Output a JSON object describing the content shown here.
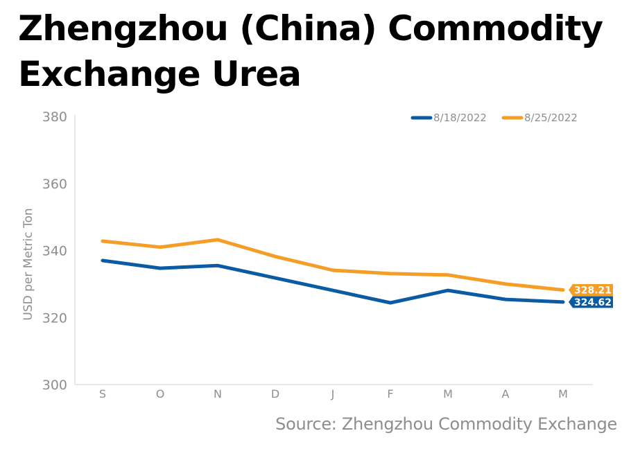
{
  "title_lines": [
    "Zhengzhou (China) Commodity",
    "Exchange Urea"
  ],
  "source": "Source: Zhengzhou Commodity Exchange",
  "chart_data": {
    "type": "line",
    "title": "Zhengzhou (China) Commodity Exchange Urea",
    "xlabel": "",
    "ylabel": "USD per Metric Ton",
    "categories": [
      "S",
      "O",
      "N",
      "D",
      "J",
      "F",
      "M",
      "A",
      "M"
    ],
    "ylim": [
      300,
      380
    ],
    "yticks": [
      300,
      320,
      340,
      360,
      380
    ],
    "ytick_labels": [
      "300",
      "320",
      "340",
      "360",
      "380"
    ],
    "grid": false,
    "legend_position": "top-right",
    "series": [
      {
        "name": "8/18/2022",
        "color": "#0a5ba4",
        "values": [
          337.0,
          334.7,
          335.5,
          331.8,
          328.1,
          324.4,
          328.1,
          325.4,
          324.62
        ],
        "end_label": "324.62"
      },
      {
        "name": "8/25/2022",
        "color": "#f59e27",
        "values": [
          342.8,
          341.0,
          343.2,
          338.2,
          334.1,
          333.1,
          332.7,
          330.0,
          328.21
        ],
        "end_label": "328.21"
      }
    ]
  }
}
